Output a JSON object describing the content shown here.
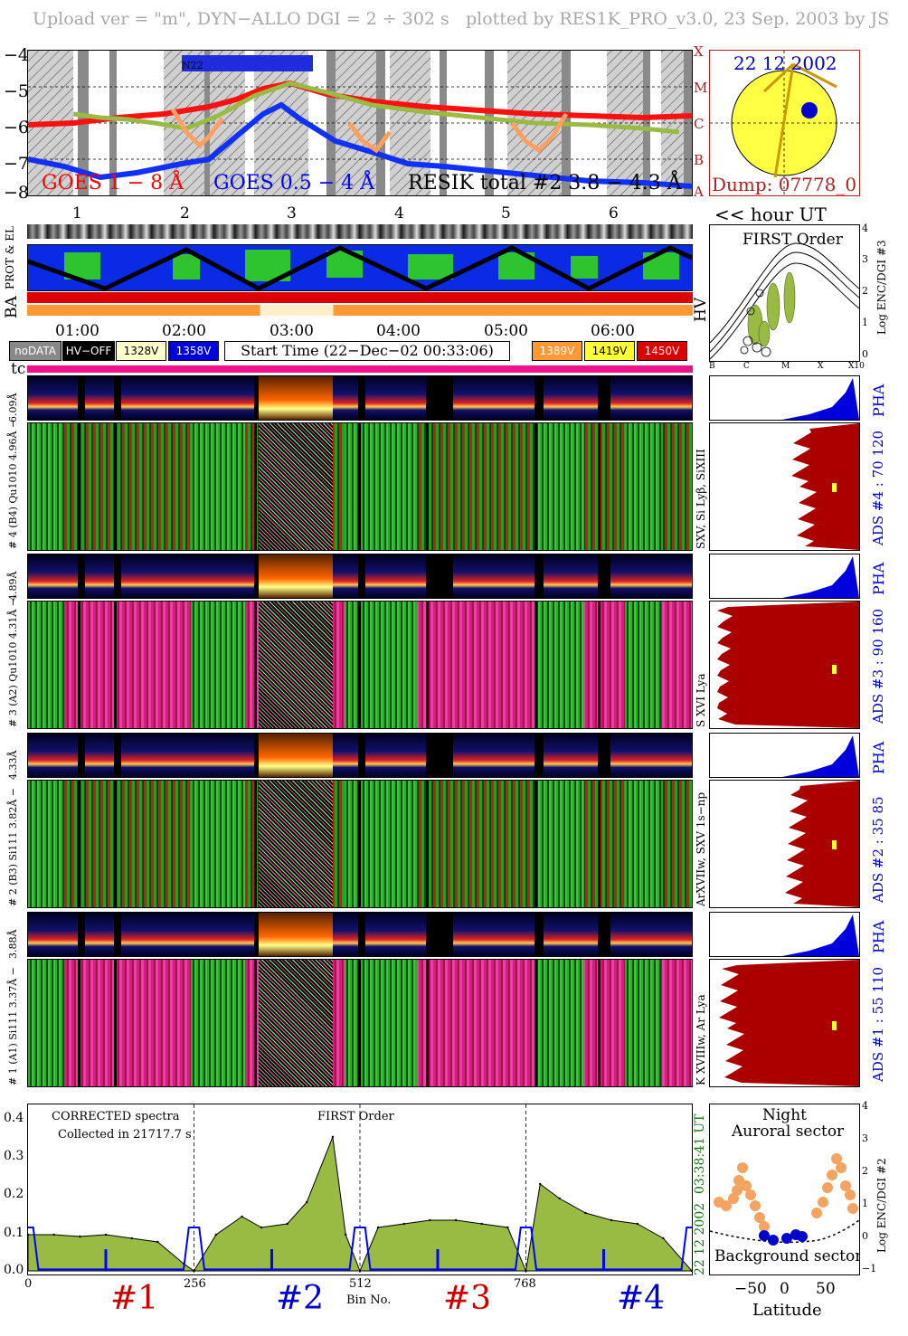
{
  "header": {
    "left": "Upload ver = \"m\", DYN−ALLO DGI =   2 ÷ 302 s",
    "right": "plotted by RES1K_PRO_v3.0, 23 Sep. 2003 by JS"
  },
  "goes": {
    "yticks": [
      "−4",
      "−5",
      "−6",
      "−7",
      "−8"
    ],
    "class_labels": [
      "X",
      "M",
      "C",
      "B",
      "A"
    ],
    "legend_goes_long": "GOES 1 − 8 Å",
    "legend_goes_short": "GOES 0.5 − 4 Å",
    "legend_resik": "RESIK total #2  3.8 − 4.3 Å",
    "annot": "N22",
    "orbit_numbers": [
      "1",
      "2",
      "3",
      "4",
      "5",
      "6"
    ],
    "colors": {
      "goes_long": "#ff0000",
      "goes_short": "#0000ff",
      "resik": "#99bb44",
      "orange": "#ffa060"
    }
  },
  "sun": {
    "date": "22 12 2002",
    "dump": "Dump: 07778_0",
    "colors": {
      "disk": "#ffff44",
      "vector": "#cc9900",
      "frame": "#b02020"
    }
  },
  "hour_ut_label": "<< hour UT",
  "status": {
    "label_prot": "PROT & EL",
    "label_ba": "BA",
    "label_hv": "HV"
  },
  "time_axis": [
    "01:00",
    "02:00",
    "03:00",
    "04:00",
    "05:00",
    "06:00"
  ],
  "legend": {
    "nodata": "noDATA",
    "hvoff": "HV−OFF",
    "v328": "1328V",
    "v358": "1358V",
    "start_time": "Start Time (22−Dec−02 00:33:06)",
    "v389": "1389V",
    "v419": "1419V",
    "v450": "1450V",
    "tc": "tc"
  },
  "first_order": {
    "title": "FIRST Order",
    "ylabel": "Log ENC/DGI #3",
    "yticks": [
      "4",
      "3",
      "2",
      "1",
      "0"
    ],
    "xticks": [
      "B",
      "C",
      "M",
      "X",
      "X10"
    ]
  },
  "channels": [
    {
      "pha_label": "6.09Å",
      "main_label": "# 4 (B4) Qu1010 4.96Å −",
      "right_label": "SXV, Si Lyβ, SiXIII",
      "ads_label": "ADS #4 :   70 120"
    },
    {
      "pha_label": "4.89Å",
      "main_label": "# 3 (A2) Qu1010 4.31Å −",
      "right_label": "S XVI Lya",
      "ads_label": "ADS #3 :   90 160"
    },
    {
      "pha_label": "4.33Å",
      "main_label": "# 2 (B3) Si111 3.82Å −",
      "right_label": "ArXVIIw, SXV 1s−np",
      "ads_label": "ADS #2 :   35 85"
    },
    {
      "pha_label": "3.88Å",
      "main_label": "# 1 (A1) Si111 3.37Å −",
      "right_label": "K XVIIIw, Ar Lya",
      "ads_label": "ADS #1 :   55 110"
    }
  ],
  "pha_text": "PHA",
  "spectrum": {
    "title": "CORRECTED spectra",
    "collected": "Collected in 21717.7 s",
    "order": "FIRST Order",
    "xlabel": "Bin No.",
    "yticks": [
      "0.4",
      "0.3",
      "0.2",
      "0.1",
      "0.0"
    ],
    "xticks": [
      "0",
      "256",
      "512",
      "768"
    ],
    "right_time": "03:38:41 UT",
    "right_date": "22 12 2002",
    "channel_labels": [
      "#1",
      "#2",
      "#3",
      "#4"
    ],
    "colors": {
      "fill": "#99bb44",
      "line": "#000000",
      "bg": "#0000ff"
    }
  },
  "lat_panel": {
    "title1": "Night",
    "title2": "Auroral sector",
    "bottom": "Background sector",
    "ylabel": "Log ENC/DGI #2",
    "xlabel": "Latitude",
    "yticks": [
      "4",
      "3",
      "2",
      "1",
      "0",
      "−1"
    ],
    "xticks": [
      "−50",
      "0",
      "50"
    ]
  },
  "chart_data": {
    "type": "line",
    "title": "CORRECTED spectra",
    "xlabel": "Bin No.",
    "ylabel": "",
    "xlim": [
      0,
      1024
    ],
    "ylim": [
      0,
      0.45
    ],
    "xticks": [
      0,
      256,
      512,
      768
    ],
    "yticks": [
      0.0,
      0.1,
      0.2,
      0.3,
      0.4
    ],
    "series": [
      {
        "name": "#1",
        "x": [
          0,
          40,
          80,
          120,
          160,
          200,
          240,
          256
        ],
        "values": [
          0.1,
          0.1,
          0.095,
          0.1,
          0.09,
          0.08,
          0.02,
          0.0
        ]
      },
      {
        "name": "#2",
        "x": [
          256,
          290,
          330,
          360,
          400,
          430,
          470,
          490,
          512
        ],
        "values": [
          0.0,
          0.1,
          0.15,
          0.12,
          0.13,
          0.19,
          0.37,
          0.1,
          0.0
        ]
      },
      {
        "name": "#3",
        "x": [
          512,
          540,
          580,
          620,
          660,
          700,
          740,
          768
        ],
        "values": [
          0.0,
          0.12,
          0.13,
          0.14,
          0.14,
          0.13,
          0.12,
          0.0
        ]
      },
      {
        "name": "#4",
        "x": [
          768,
          790,
          820,
          860,
          900,
          940,
          980,
          1024
        ],
        "values": [
          0.0,
          0.24,
          0.2,
          0.16,
          0.14,
          0.13,
          0.09,
          0.0
        ]
      }
    ]
  }
}
